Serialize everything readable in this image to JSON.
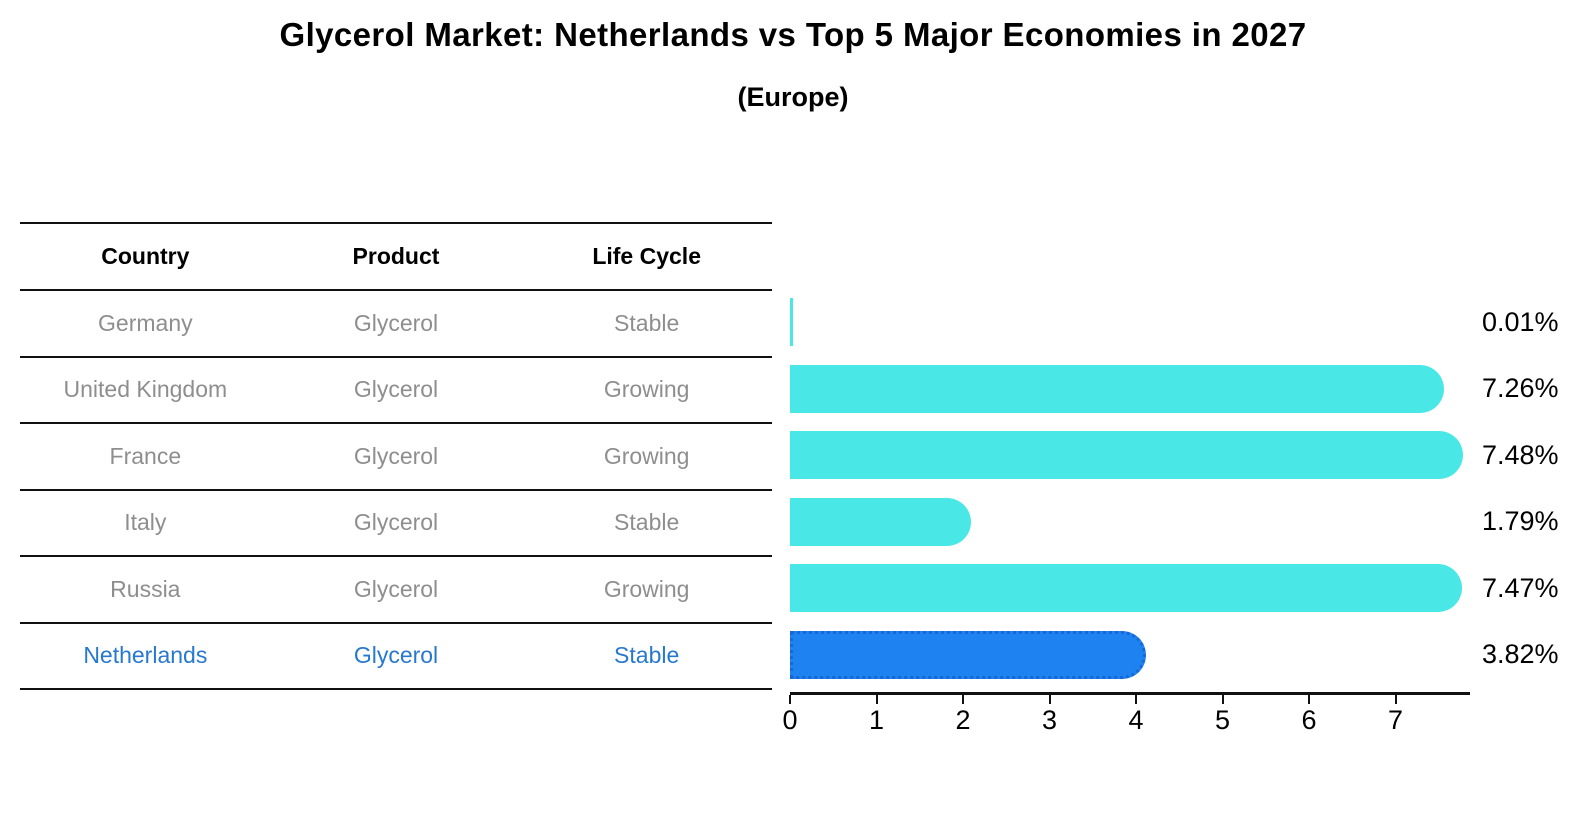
{
  "table": {
    "headers": [
      "Country",
      "Product",
      "Life Cycle"
    ],
    "rows": [
      {
        "country": "Germany",
        "product": "Glycerol",
        "life_cycle": "Stable",
        "highlight": false
      },
      {
        "country": "United Kingdom",
        "product": "Glycerol",
        "life_cycle": "Growing",
        "highlight": false
      },
      {
        "country": "France",
        "product": "Glycerol",
        "life_cycle": "Growing",
        "highlight": false
      },
      {
        "country": "Italy",
        "product": "Glycerol",
        "life_cycle": "Stable",
        "highlight": false
      },
      {
        "country": "Russia",
        "product": "Glycerol",
        "life_cycle": "Growing",
        "highlight": false
      },
      {
        "country": "Netherlands",
        "product": "Glycerol",
        "life_cycle": "Stable",
        "highlight": true
      }
    ]
  },
  "chart_data": {
    "type": "bar",
    "orientation": "horizontal",
    "title": "Glycerol Market: Netherlands vs Top 5 Major Economies in 2027",
    "subtitle": "(Europe)",
    "categories": [
      "Germany",
      "United Kingdom",
      "France",
      "Italy",
      "Russia",
      "Netherlands"
    ],
    "values": [
      0.01,
      7.26,
      7.48,
      1.79,
      7.47,
      3.82
    ],
    "value_labels": [
      "0.01%",
      "7.26%",
      "7.48%",
      "1.79%",
      "7.47%",
      "3.82%"
    ],
    "x_ticks": [
      "0",
      "1",
      "2",
      "3",
      "4",
      "5",
      "6",
      "7"
    ],
    "xlim": [
      0,
      7.85
    ],
    "grid": false,
    "legend": "none",
    "highlight_index": 5
  },
  "colors": {
    "bar": "#4AE7E7",
    "highlight_bar": "#1E82F0",
    "highlight_border": "#1668D8",
    "highlight_text": "#2778CF",
    "row_text": "#8E8E8E",
    "heading_text": "#000000",
    "axis": "#111111"
  }
}
